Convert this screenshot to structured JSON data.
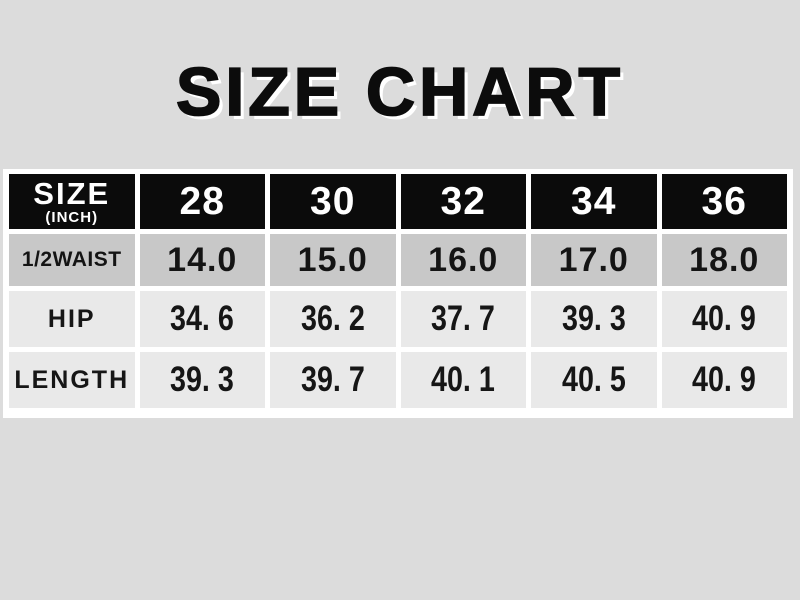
{
  "title": "SIZE CHART",
  "size_chart": {
    "header_label": "SIZE",
    "unit_note": "(INCH)",
    "sizes": [
      "28",
      "30",
      "32",
      "34",
      "36"
    ],
    "rows": [
      {
        "label": "1/2WAIST",
        "values": [
          "14.0",
          "15.0",
          "16.0",
          "17.0",
          "18.0"
        ]
      },
      {
        "label": "HIP",
        "values": [
          "34. 6",
          "36. 2",
          "37. 7",
          "39. 3",
          "40. 9"
        ]
      },
      {
        "label": "LENGTH",
        "values": [
          "39. 3",
          "39. 7",
          "40. 1",
          "40. 5",
          "40. 9"
        ]
      }
    ]
  },
  "chart_data": {
    "type": "table",
    "title": "SIZE CHART",
    "unit": "inch",
    "columns": [
      "SIZE (INCH)",
      "28",
      "30",
      "32",
      "34",
      "36"
    ],
    "rows": [
      {
        "label": "1/2WAIST",
        "values": [
          14.0,
          15.0,
          16.0,
          17.0,
          18.0
        ]
      },
      {
        "label": "HIP",
        "values": [
          34.6,
          36.2,
          37.7,
          39.3,
          40.9
        ]
      },
      {
        "label": "LENGTH",
        "values": [
          39.3,
          39.7,
          40.1,
          40.5,
          40.9
        ]
      }
    ]
  },
  "colors": {
    "page_background": "#dcdcdc",
    "panel_background": "#ffffff",
    "header_cell": "#0b0b0b",
    "header_text": "#ffffff",
    "waist_row_cell": "#c8c8c8",
    "light_row_cell": "#e9e9e9",
    "body_text": "#141414",
    "title_text": "#0c0c0c",
    "title_shadow": "#ffffff"
  }
}
